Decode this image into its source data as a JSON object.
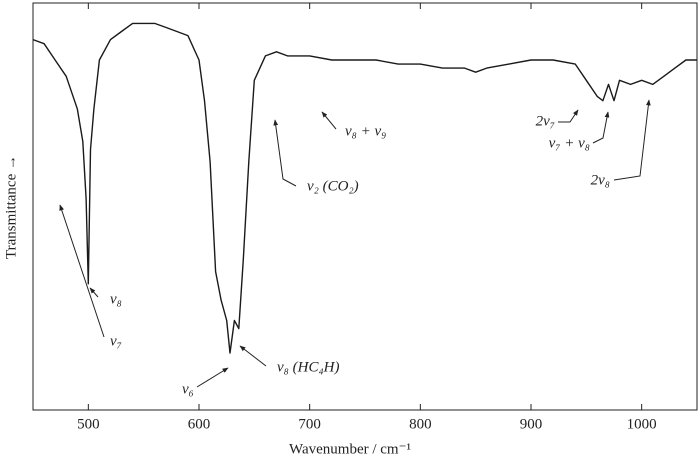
{
  "chart_data": {
    "type": "line",
    "x_label": "Wavenumber / cm⁻¹",
    "y_label": "Transmittance →",
    "x": [
      450,
      460,
      470,
      480,
      490,
      495,
      498,
      500,
      502,
      505,
      510,
      520,
      530,
      540,
      550,
      560,
      570,
      580,
      590,
      600,
      605,
      610,
      615,
      620,
      625,
      628,
      632,
      636,
      640,
      645,
      650,
      660,
      670,
      680,
      690,
      700,
      720,
      740,
      760,
      780,
      800,
      820,
      840,
      850,
      860,
      880,
      900,
      920,
      940,
      950,
      960,
      965,
      970,
      975,
      980,
      990,
      1000,
      1010,
      1020,
      1030,
      1040,
      1050
    ],
    "values": [
      0.91,
      0.9,
      0.86,
      0.82,
      0.74,
      0.66,
      0.52,
      0.31,
      0.64,
      0.74,
      0.86,
      0.91,
      0.93,
      0.95,
      0.95,
      0.95,
      0.94,
      0.93,
      0.92,
      0.86,
      0.76,
      0.61,
      0.34,
      0.27,
      0.22,
      0.14,
      0.22,
      0.2,
      0.37,
      0.61,
      0.81,
      0.87,
      0.88,
      0.87,
      0.87,
      0.87,
      0.86,
      0.86,
      0.86,
      0.85,
      0.85,
      0.84,
      0.84,
      0.83,
      0.84,
      0.85,
      0.86,
      0.86,
      0.85,
      0.81,
      0.77,
      0.76,
      0.8,
      0.76,
      0.81,
      0.8,
      0.81,
      0.8,
      0.82,
      0.84,
      0.86,
      0.86
    ],
    "color": "#1a1a1a",
    "xlim": [
      450,
      1050
    ],
    "xticks": [
      500,
      600,
      700,
      800,
      900,
      1000
    ],
    "ylim": [
      0,
      1
    ],
    "annotations": [
      "ν₈",
      "ν₇",
      "ν₆",
      "ν₈ (HC₄H)",
      "ν₂ (CO₂)",
      "ν₈ + ν₉",
      "2ν₇",
      "ν₇ + ν₈",
      "2ν₈"
    ]
  }
}
